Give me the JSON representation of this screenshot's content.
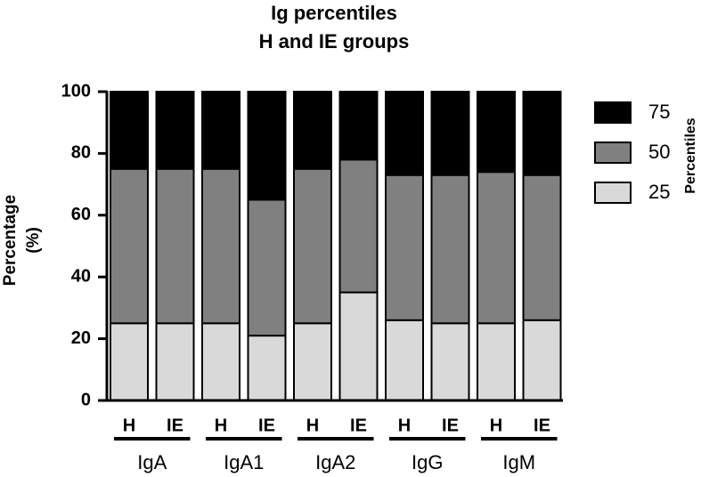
{
  "chart_data": {
    "type": "stacked_bar",
    "title": "Ig percentiles",
    "subtitle": "H and IE groups",
    "y_label": [
      "Percentage",
      "(%)"
    ],
    "legend_title": "Percentiles",
    "categories": [
      "H",
      "IE",
      "H",
      "IE",
      "H",
      "IE",
      "H",
      "IE",
      "H",
      "IE"
    ],
    "groups": [
      "IgA",
      "IgA1",
      "IgA2",
      "IgG",
      "IgM"
    ],
    "series": [
      {
        "name": "25",
        "color": "#d9d9d9",
        "values": [
          25,
          25,
          25,
          21,
          25,
          35,
          26,
          25,
          25,
          26
        ]
      },
      {
        "name": "50",
        "color": "#808080",
        "values": [
          50,
          50,
          50,
          44,
          50,
          43,
          47,
          48,
          49,
          47
        ]
      },
      {
        "name": "75",
        "color": "#000000",
        "values": [
          25,
          25,
          25,
          35,
          25,
          22,
          27,
          27,
          26,
          27
        ]
      }
    ],
    "ylim": [
      0,
      100
    ],
    "yticks": [
      0,
      20,
      40,
      60,
      80,
      100
    ],
    "grid": false
  }
}
